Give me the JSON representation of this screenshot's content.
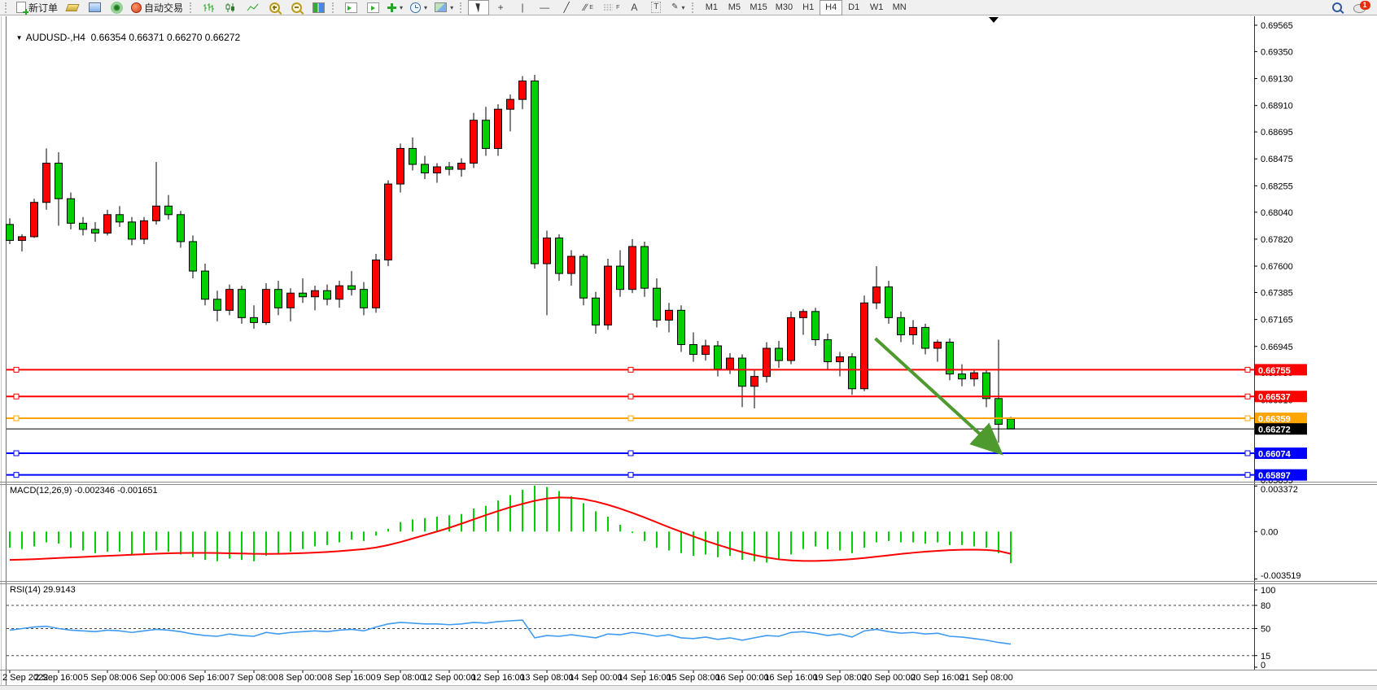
{
  "icons": {
    "collapse": "▼",
    "dropdown": "▾",
    "crosshair": "+",
    "vline": "|",
    "hline": "—",
    "trendline": "╱",
    "channel": "∕∕",
    "channel_sub": "E",
    "fibo_sub": "F",
    "text_tool": "A",
    "label_tool": "T",
    "arrows_tool": "✎"
  },
  "toolbar": {
    "new_order": "新订单",
    "auto_trading": "自动交易",
    "timeframes": [
      "M1",
      "M5",
      "M15",
      "M30",
      "H1",
      "H4",
      "D1",
      "W1",
      "MN"
    ],
    "active_timeframe": "H4",
    "notification_badge": "1"
  },
  "chart": {
    "symbol_period": "AUDUSD-,H4",
    "ohlc_text": "0.66354 0.66371 0.66270 0.66272",
    "macd_label": "MACD(12,26,9) -0.002346 -0.001651",
    "rsi_label": "RSI(14) 29.9143"
  },
  "chart_data": {
    "type": "candlestick",
    "symbol": "AUDUSD",
    "timeframe": "H4",
    "color_convention": "red = bullish, green = bearish (Chinese convention)",
    "colors": {
      "bull": "#FF0000",
      "bear": "#00D000",
      "wick": "#000000",
      "macd_hist": "#00D000",
      "macd_signal": "#FF0000",
      "rsi_line": "#3E9BF0",
      "arrow": "#4E9A2E"
    },
    "price_axis_ticks": [
      "0.69565",
      "0.69350",
      "0.69130",
      "0.68910",
      "0.68695",
      "0.68475",
      "0.68255",
      "0.68040",
      "0.67820",
      "0.67600",
      "0.67385",
      "0.67165",
      "0.66945",
      "0.66730",
      "0.66510",
      "0.66290",
      "0.66070",
      "0.65855"
    ],
    "time_labels": [
      "2 Sep 2022",
      "2 Sep 16:00",
      "5 Sep 08:00",
      "6 Sep 00:00",
      "6 Sep 16:00",
      "7 Sep 08:00",
      "8 Sep 00:00",
      "8 Sep 16:00",
      "9 Sep 08:00",
      "12 Sep 00:00",
      "12 Sep 16:00",
      "13 Sep 08:00",
      "14 Sep 00:00",
      "14 Sep 16:00",
      "15 Sep 08:00",
      "16 Sep 00:00",
      "16 Sep 16:00",
      "19 Sep 08:00",
      "20 Sep 00:00",
      "20 Sep 16:00",
      "21 Sep 08:00"
    ],
    "label_every_n_bars": 4,
    "candles": [
      [
        0.6794,
        0.6799,
        0.6778,
        0.6781
      ],
      [
        0.6781,
        0.6786,
        0.6772,
        0.6784
      ],
      [
        0.6784,
        0.6815,
        0.6783,
        0.6812
      ],
      [
        0.6812,
        0.6856,
        0.6806,
        0.6844
      ],
      [
        0.6844,
        0.6853,
        0.6793,
        0.6815
      ],
      [
        0.6815,
        0.682,
        0.679,
        0.6795
      ],
      [
        0.6795,
        0.68,
        0.6785,
        0.679
      ],
      [
        0.679,
        0.6796,
        0.678,
        0.6787
      ],
      [
        0.6787,
        0.6806,
        0.6785,
        0.6802
      ],
      [
        0.6802,
        0.6809,
        0.6792,
        0.6796
      ],
      [
        0.6796,
        0.68,
        0.6777,
        0.6782
      ],
      [
        0.6782,
        0.68,
        0.6778,
        0.6797
      ],
      [
        0.6797,
        0.6845,
        0.6794,
        0.6809
      ],
      [
        0.6809,
        0.6818,
        0.6798,
        0.6802
      ],
      [
        0.6802,
        0.6805,
        0.6775,
        0.678
      ],
      [
        0.678,
        0.6785,
        0.675,
        0.6756
      ],
      [
        0.6756,
        0.6762,
        0.6728,
        0.6733
      ],
      [
        0.6733,
        0.674,
        0.6715,
        0.6724
      ],
      [
        0.6724,
        0.6745,
        0.672,
        0.6741
      ],
      [
        0.6741,
        0.6744,
        0.6713,
        0.6718
      ],
      [
        0.6718,
        0.6728,
        0.6709,
        0.6714
      ],
      [
        0.6714,
        0.6746,
        0.6712,
        0.6741
      ],
      [
        0.6741,
        0.6748,
        0.672,
        0.6726
      ],
      [
        0.6726,
        0.6742,
        0.6715,
        0.6738
      ],
      [
        0.6738,
        0.675,
        0.673,
        0.6735
      ],
      [
        0.6735,
        0.6744,
        0.6724,
        0.674
      ],
      [
        0.674,
        0.6745,
        0.6728,
        0.6733
      ],
      [
        0.6733,
        0.6748,
        0.6726,
        0.6744
      ],
      [
        0.6744,
        0.6756,
        0.6736,
        0.6741
      ],
      [
        0.6741,
        0.6747,
        0.672,
        0.6726
      ],
      [
        0.6726,
        0.677,
        0.6722,
        0.6765
      ],
      [
        0.6765,
        0.683,
        0.676,
        0.6827
      ],
      [
        0.6827,
        0.686,
        0.682,
        0.6856
      ],
      [
        0.6856,
        0.6865,
        0.6838,
        0.6843
      ],
      [
        0.6843,
        0.685,
        0.6831,
        0.6836
      ],
      [
        0.6836,
        0.6844,
        0.6828,
        0.6841
      ],
      [
        0.6841,
        0.6845,
        0.6834,
        0.6839
      ],
      [
        0.6839,
        0.6848,
        0.6833,
        0.6844
      ],
      [
        0.6844,
        0.6885,
        0.684,
        0.6879
      ],
      [
        0.6879,
        0.689,
        0.685,
        0.6856
      ],
      [
        0.6856,
        0.6892,
        0.685,
        0.6888
      ],
      [
        0.6888,
        0.69,
        0.687,
        0.6896
      ],
      [
        0.6896,
        0.6915,
        0.6888,
        0.6911
      ],
      [
        0.6911,
        0.6916,
        0.6758,
        0.6762
      ],
      [
        0.6762,
        0.6789,
        0.672,
        0.6783
      ],
      [
        0.6783,
        0.6786,
        0.6748,
        0.6754
      ],
      [
        0.6754,
        0.6773,
        0.6744,
        0.6768
      ],
      [
        0.6768,
        0.677,
        0.6728,
        0.6734
      ],
      [
        0.6734,
        0.6739,
        0.6705,
        0.6712
      ],
      [
        0.6712,
        0.6766,
        0.6708,
        0.676
      ],
      [
        0.676,
        0.6773,
        0.6735,
        0.6741
      ],
      [
        0.6741,
        0.6782,
        0.6738,
        0.6776
      ],
      [
        0.6776,
        0.678,
        0.6735,
        0.6742
      ],
      [
        0.6742,
        0.675,
        0.671,
        0.6716
      ],
      [
        0.6716,
        0.673,
        0.6706,
        0.6724
      ],
      [
        0.6724,
        0.6728,
        0.669,
        0.6696
      ],
      [
        0.6696,
        0.6706,
        0.6682,
        0.6688
      ],
      [
        0.6688,
        0.67,
        0.6683,
        0.6695
      ],
      [
        0.6695,
        0.6699,
        0.667,
        0.6676
      ],
      [
        0.6676,
        0.6689,
        0.6672,
        0.6685
      ],
      [
        0.6685,
        0.6688,
        0.6645,
        0.6662
      ],
      [
        0.6662,
        0.6675,
        0.6644,
        0.667
      ],
      [
        0.667,
        0.6698,
        0.6665,
        0.6693
      ],
      [
        0.6693,
        0.6699,
        0.6677,
        0.6683
      ],
      [
        0.6683,
        0.6723,
        0.668,
        0.6718
      ],
      [
        0.6718,
        0.6725,
        0.6704,
        0.6723
      ],
      [
        0.6723,
        0.6726,
        0.6695,
        0.67
      ],
      [
        0.67,
        0.6705,
        0.6676,
        0.6682
      ],
      [
        0.6682,
        0.669,
        0.667,
        0.6686
      ],
      [
        0.6686,
        0.6689,
        0.6655,
        0.666
      ],
      [
        0.666,
        0.6736,
        0.6658,
        0.673
      ],
      [
        0.673,
        0.676,
        0.6725,
        0.6743
      ],
      [
        0.6743,
        0.6748,
        0.6713,
        0.6718
      ],
      [
        0.6718,
        0.6723,
        0.6698,
        0.6704
      ],
      [
        0.6704,
        0.6716,
        0.6696,
        0.671
      ],
      [
        0.671,
        0.6713,
        0.6688,
        0.6693
      ],
      [
        0.6693,
        0.67,
        0.6682,
        0.6698
      ],
      [
        0.6698,
        0.6701,
        0.6667,
        0.6672
      ],
      [
        0.6672,
        0.668,
        0.6662,
        0.6668
      ],
      [
        0.6668,
        0.6676,
        0.6662,
        0.6673
      ],
      [
        0.6673,
        0.6676,
        0.6645,
        0.6652
      ],
      [
        0.6652,
        0.67,
        0.6616,
        0.6631
      ],
      [
        0.66354,
        0.66371,
        0.6627,
        0.66272
      ]
    ],
    "hlines": [
      {
        "price": 0.66755,
        "color": "#FF0000",
        "label": "0.66755",
        "width": 2,
        "handles": true
      },
      {
        "price": 0.66537,
        "color": "#FF0000",
        "label": "0.66537",
        "width": 2,
        "handles": true
      },
      {
        "price": 0.66359,
        "color": "#FFA500",
        "label": "0.66359",
        "width": 2,
        "handles": true
      },
      {
        "price": 0.66272,
        "color": "#000000",
        "label": "0.66272",
        "width": 1,
        "handles": false,
        "role": "current-price-line"
      },
      {
        "price": 0.66074,
        "color": "#0000FF",
        "label": "0.66074",
        "width": 2,
        "handles": true
      },
      {
        "price": 0.65897,
        "color": "#0000FF",
        "label": "0.65897",
        "width": 2,
        "handles": true
      }
    ],
    "arrow": {
      "from_bar": 70.9,
      "from_price": 0.6701,
      "to_bar": 80.8,
      "to_price": 0.6611,
      "color": "#4E9A2E"
    },
    "macd": {
      "name": "MACD(12,26,9)",
      "main_value": -0.002346,
      "signal_value": -0.001651,
      "ylim": [
        -0.0036,
        0.00345
      ],
      "axis_ticks": [
        {
          "label": "0.003372",
          "value": 0.003372
        },
        {
          "label": "0.00",
          "value": 0.0
        },
        {
          "label": "-0.003519",
          "value": -0.003519
        }
      ],
      "histogram": [
        -0.0012,
        -0.0013,
        -0.0011,
        -0.0008,
        -0.0009,
        -0.0012,
        -0.0014,
        -0.0016,
        -0.0015,
        -0.0015,
        -0.0017,
        -0.0016,
        -0.0014,
        -0.0015,
        -0.0017,
        -0.0019,
        -0.0021,
        -0.0022,
        -0.002,
        -0.0021,
        -0.0022,
        -0.0018,
        -0.0017,
        -0.0015,
        -0.0013,
        -0.0011,
        -0.001,
        -0.0008,
        -0.0006,
        -0.0007,
        -0.0003,
        0.0002,
        0.0007,
        0.0009,
        0.001,
        0.0011,
        0.0012,
        0.0013,
        0.0017,
        0.0019,
        0.0023,
        0.0027,
        0.0031,
        0.0034,
        0.0033,
        0.003,
        0.0026,
        0.0021,
        0.0015,
        0.0011,
        0.0005,
        -0.0001,
        -0.0007,
        -0.0012,
        -0.0014,
        -0.0016,
        -0.0018,
        -0.0017,
        -0.0019,
        -0.0018,
        -0.0021,
        -0.0022,
        -0.0023,
        -0.0021,
        -0.0017,
        -0.0013,
        -0.0011,
        -0.0013,
        -0.0014,
        -0.0016,
        -0.0012,
        -0.0008,
        -0.0007,
        -0.0008,
        -0.0008,
        -0.0009,
        -0.0008,
        -0.001,
        -0.001,
        -0.0011,
        -0.0012,
        -0.0016,
        -0.002346
      ],
      "signal": [
        -0.0021,
        -0.00208,
        -0.00205,
        -0.002,
        -0.00196,
        -0.00192,
        -0.00188,
        -0.00184,
        -0.0018,
        -0.00176,
        -0.00172,
        -0.00168,
        -0.00164,
        -0.00161,
        -0.00159,
        -0.00158,
        -0.00158,
        -0.00159,
        -0.00161,
        -0.00163,
        -0.00165,
        -0.00166,
        -0.00165,
        -0.00163,
        -0.0016,
        -0.00156,
        -0.00151,
        -0.00145,
        -0.00138,
        -0.0013,
        -0.00118,
        -0.001,
        -0.00078,
        -0.00052,
        -0.00026,
        0.0,
        0.00028,
        0.00058,
        0.0009,
        0.00122,
        0.00152,
        0.0018,
        0.00205,
        0.00228,
        0.00245,
        0.00252,
        0.0025,
        0.0024,
        0.00222,
        0.00198,
        0.0017,
        0.00138,
        0.00104,
        0.00068,
        0.00032,
        -2e-05,
        -0.00036,
        -0.00068,
        -0.00098,
        -0.00126,
        -0.00152,
        -0.00174,
        -0.00192,
        -0.00206,
        -0.00214,
        -0.00218,
        -0.00218,
        -0.00215,
        -0.0021,
        -0.00204,
        -0.00196,
        -0.00186,
        -0.00176,
        -0.00166,
        -0.00157,
        -0.00149,
        -0.00143,
        -0.00138,
        -0.00135,
        -0.00134,
        -0.00136,
        -0.00144,
        -0.001651
      ]
    },
    "rsi": {
      "name": "RSI(14)",
      "current_value": 29.9143,
      "ylim": [
        0,
        100
      ],
      "levels": [
        80,
        50,
        15
      ],
      "axis_ticks": [
        "100",
        "80",
        "50",
        "15",
        "0"
      ],
      "values": [
        48,
        50,
        52,
        53,
        50,
        48,
        47,
        46,
        48,
        47,
        45,
        47,
        49,
        48,
        46,
        43,
        41,
        40,
        43,
        41,
        40,
        45,
        43,
        45,
        46,
        47,
        46,
        48,
        49,
        47,
        52,
        56,
        58,
        57,
        56,
        56,
        55,
        56,
        58,
        57,
        59,
        60,
        61,
        38,
        41,
        40,
        42,
        40,
        38,
        43,
        42,
        45,
        43,
        40,
        42,
        38,
        37,
        39,
        36,
        38,
        35,
        38,
        41,
        40,
        45,
        46,
        44,
        41,
        43,
        39,
        47,
        49,
        46,
        44,
        45,
        43,
        44,
        40,
        39,
        37,
        35,
        32,
        29.9143
      ]
    }
  }
}
